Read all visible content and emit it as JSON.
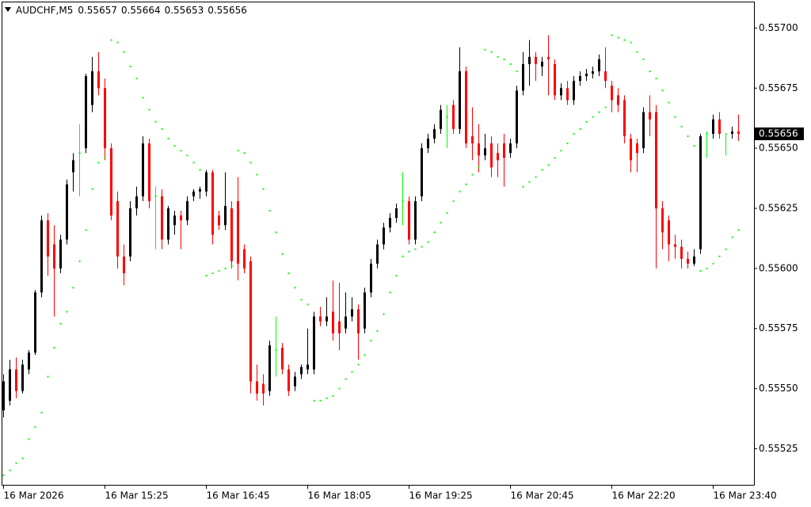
{
  "chart_data": {
    "type": "candlestick",
    "symbol": "AUDCHF,M5",
    "up_color": "#000000",
    "down_color": "#ff0000",
    "doji_color": "#00ff00",
    "sar_color": "#00ff00",
    "ylim": [
      0.5551,
      0.55711
    ],
    "yticks": [
      {
        "value": 0.55525,
        "label": "0.55525"
      },
      {
        "value": 0.5555,
        "label": "0.55550"
      },
      {
        "value": 0.55575,
        "label": "0.55575"
      },
      {
        "value": 0.556,
        "label": "0.55600"
      },
      {
        "value": 0.55625,
        "label": "0.55625"
      },
      {
        "value": 0.5565,
        "label": "0.55650"
      },
      {
        "value": 0.55675,
        "label": "0.55675"
      },
      {
        "value": 0.557,
        "label": "0.55700"
      }
    ],
    "categories": [
      "16 Mar 2026",
      null,
      null,
      null,
      null,
      null,
      null,
      null,
      null,
      null,
      null,
      null,
      null,
      null,
      null,
      null,
      "16 Mar 15:25",
      null,
      null,
      null,
      null,
      null,
      null,
      null,
      null,
      null,
      null,
      null,
      null,
      null,
      null,
      null,
      "16 Mar 16:45",
      null,
      null,
      null,
      null,
      null,
      null,
      null,
      null,
      null,
      null,
      null,
      null,
      null,
      null,
      null,
      "16 Mar 18:05",
      null,
      null,
      null,
      null,
      null,
      null,
      null,
      null,
      null,
      null,
      null,
      null,
      null,
      null,
      null,
      "16 Mar 19:25",
      null,
      null,
      null,
      null,
      null,
      null,
      null,
      null,
      null,
      null,
      null,
      null,
      null,
      null,
      null,
      "16 Mar 20:45",
      null,
      null,
      null,
      null,
      null,
      null,
      null,
      null,
      null,
      null,
      null,
      null,
      null,
      null,
      null,
      "16 Mar 22:20",
      null,
      null,
      null,
      null,
      null,
      null,
      null,
      null,
      null,
      null,
      null,
      null,
      null,
      null,
      null,
      "16 Mar 23:40",
      null,
      null,
      null,
      null
    ],
    "open": [
      0.55541,
      0.55545,
      0.55558,
      0.55549,
      0.55558,
      0.55565,
      0.5559,
      0.5562,
      0.5561,
      0.556,
      0.55612,
      0.5564,
      0.55648,
      0.5565,
      0.55668,
      0.55682,
      0.55675,
      0.5565,
      0.55628,
      0.55605,
      0.55605,
      0.55625,
      0.5563,
      0.55652,
      0.5563,
      0.5563,
      0.55612,
      0.55618,
      0.55622,
      0.5562,
      0.5563,
      0.55632,
      0.55632,
      0.5564,
      0.55622,
      0.55618,
      0.55625,
      0.55628,
      0.55608,
      0.55603,
      0.55553,
      0.55552,
      0.55549,
      0.55566,
      0.55567,
      0.55558,
      0.55551,
      0.55556,
      0.55558,
      0.55558,
      0.5558,
      0.55578,
      0.55582,
      0.55578,
      0.55575,
      0.5558,
      0.55583,
      0.55575,
      0.5559,
      0.55602,
      0.5561,
      0.55617,
      0.55621,
      0.55628,
      0.55628,
      0.55612,
      0.5563,
      0.5565,
      0.55654,
      0.55658,
      0.55663,
      0.55668,
      0.55658,
      0.55682,
      0.55655,
      0.55652,
      0.55647,
      0.55652,
      0.55648,
      0.55652,
      0.55648,
      0.55652,
      0.55674,
      0.55685,
      0.55688,
      0.55684,
      0.55688,
      0.55685,
      0.55672,
      0.55675,
      0.5567,
      0.55678,
      0.5568,
      0.55681,
      0.55682,
      0.55682,
      0.55676,
      0.55672,
      0.5567,
      0.55654,
      0.55652,
      0.5565,
      0.55665,
      0.55665,
      0.55625,
      0.5562,
      0.5561,
      0.55609,
      0.55604,
      0.55602,
      0.55608,
      0.55656,
      0.55656,
      0.55662,
      0.55656,
      0.55656,
      0.55657
    ],
    "high": [
      0.55556,
      0.55562,
      0.55563,
      0.55562,
      0.55566,
      0.55591,
      0.55622,
      0.55623,
      0.55618,
      0.55614,
      0.55637,
      0.55648,
      0.5566,
      0.55681,
      0.55688,
      0.5569,
      0.55679,
      0.55652,
      0.55632,
      0.5561,
      0.55628,
      0.55634,
      0.55655,
      0.55654,
      0.55634,
      0.55633,
      0.55626,
      0.55624,
      0.55624,
      0.5563,
      0.55633,
      0.55634,
      0.55641,
      0.55641,
      0.55624,
      0.5564,
      0.55628,
      0.55638,
      0.5561,
      0.55605,
      0.5556,
      0.55556,
      0.5557,
      0.5558,
      0.55569,
      0.5556,
      0.55557,
      0.5556,
      0.55575,
      0.55582,
      0.55584,
      0.55588,
      0.55595,
      0.55594,
      0.5559,
      0.55588,
      0.55585,
      0.55592,
      0.55604,
      0.55612,
      0.55619,
      0.55623,
      0.55627,
      0.5564,
      0.5563,
      0.5563,
      0.55652,
      0.55656,
      0.5566,
      0.55668,
      0.55668,
      0.5567,
      0.55692,
      0.55684,
      0.55667,
      0.5566,
      0.55656,
      0.55655,
      0.55652,
      0.55656,
      0.55654,
      0.55676,
      0.5569,
      0.55695,
      0.5569,
      0.55688,
      0.55697,
      0.55687,
      0.55677,
      0.55678,
      0.5568,
      0.55682,
      0.55683,
      0.55684,
      0.55689,
      0.55692,
      0.55678,
      0.55675,
      0.55672,
      0.55656,
      0.55654,
      0.55667,
      0.55672,
      0.55668,
      0.55628,
      0.55622,
      0.55614,
      0.55612,
      0.55607,
      0.55608,
      0.55656,
      0.55657,
      0.55664,
      0.55665,
      0.55656,
      0.55659,
      0.55664
    ],
    "low": [
      0.55538,
      0.55543,
      0.55546,
      0.55548,
      0.55556,
      0.55564,
      0.55588,
      0.55597,
      0.5558,
      0.55598,
      0.5561,
      0.55632,
      0.5563,
      0.55648,
      0.55665,
      0.55672,
      0.55645,
      0.5562,
      0.556,
      0.55593,
      0.55603,
      0.55622,
      0.55628,
      0.55625,
      0.55608,
      0.55608,
      0.5561,
      0.55614,
      0.55608,
      0.55618,
      0.55628,
      0.55629,
      0.5563,
      0.5561,
      0.55616,
      0.55616,
      0.556,
      0.55595,
      0.55598,
      0.55548,
      0.55545,
      0.55543,
      0.55547,
      0.55555,
      0.55556,
      0.55547,
      0.55549,
      0.55554,
      0.55556,
      0.55556,
      0.55576,
      0.55576,
      0.5557,
      0.55566,
      0.55573,
      0.55578,
      0.55562,
      0.55573,
      0.55588,
      0.556,
      0.55608,
      0.55615,
      0.55619,
      0.55618,
      0.5561,
      0.5561,
      0.55628,
      0.55648,
      0.55652,
      0.55656,
      0.5565,
      0.55656,
      0.55656,
      0.5565,
      0.55645,
      0.5564,
      0.55645,
      0.55638,
      0.55638,
      0.55634,
      0.55646,
      0.5565,
      0.55672,
      0.55676,
      0.55678,
      0.5568,
      0.55672,
      0.5567,
      0.5567,
      0.55668,
      0.55668,
      0.55676,
      0.55678,
      0.55679,
      0.5568,
      0.55675,
      0.55665,
      0.55665,
      0.55652,
      0.5564,
      0.5564,
      0.55648,
      0.55655,
      0.556,
      0.55608,
      0.55603,
      0.55604,
      0.556,
      0.556,
      0.55601,
      0.55606,
      0.55646,
      0.55654,
      0.55654,
      0.55647,
      0.55654,
      0.55653
    ],
    "close": [
      0.55553,
      0.55558,
      0.55549,
      0.5556,
      0.55565,
      0.5559,
      0.5562,
      0.55605,
      0.556,
      0.55612,
      0.55635,
      0.55645,
      0.55648,
      0.5568,
      0.55682,
      0.55675,
      0.5565,
      0.55622,
      0.55605,
      0.55598,
      0.55625,
      0.5563,
      0.55652,
      0.55628,
      0.5563,
      0.55612,
      0.55625,
      0.55622,
      0.5562,
      0.55628,
      0.55632,
      0.55633,
      0.5564,
      0.55614,
      0.55618,
      0.55626,
      0.55603,
      0.55602,
      0.556,
      0.55553,
      0.55548,
      0.55548,
      0.55568,
      0.55566,
      0.55558,
      0.55549,
      0.55555,
      0.55559,
      0.5556,
      0.5558,
      0.55578,
      0.5558,
      0.55573,
      0.55573,
      0.5558,
      0.55583,
      0.55573,
      0.5559,
      0.55602,
      0.5561,
      0.55617,
      0.55621,
      0.55625,
      0.55628,
      0.55612,
      0.55628,
      0.5565,
      0.55654,
      0.55658,
      0.55666,
      0.55663,
      0.55658,
      0.55682,
      0.55652,
      0.55652,
      0.55647,
      0.5565,
      0.55642,
      0.55645,
      0.55646,
      0.55652,
      0.55674,
      0.55685,
      0.55688,
      0.55685,
      0.55686,
      0.55687,
      0.55672,
      0.55675,
      0.5567,
      0.55678,
      0.5568,
      0.55681,
      0.55682,
      0.55687,
      0.55678,
      0.5567,
      0.55668,
      0.55655,
      0.55645,
      0.55648,
      0.55665,
      0.55662,
      0.55625,
      0.55615,
      0.5561,
      0.55609,
      0.55604,
      0.55602,
      0.55605,
      0.55655,
      0.55656,
      0.55662,
      0.55656,
      0.55656,
      0.55657,
      0.55656
    ],
    "sar": [
      0.55514,
      0.55516,
      0.55519,
      0.55521,
      0.55529,
      0.55534,
      0.5554,
      0.55555,
      0.55567,
      0.55577,
      0.55582,
      0.55592,
      0.55603,
      0.55616,
      0.55633,
      0.55644,
      0.55646,
      0.55695,
      0.55694,
      0.5569,
      0.55684,
      0.55679,
      0.55671,
      0.55666,
      0.55661,
      0.55658,
      0.55654,
      0.55651,
      0.55649,
      0.55647,
      0.55644,
      0.55641,
      0.55597,
      0.55598,
      0.55599,
      0.556,
      0.55601,
      0.55649,
      0.55648,
      0.55644,
      0.55639,
      0.55633,
      0.55624,
      0.55615,
      0.55606,
      0.55598,
      0.55592,
      0.55587,
      0.55585,
      0.55545,
      0.55545,
      0.55546,
      0.55547,
      0.5555,
      0.55554,
      0.55557,
      0.5556,
      0.55564,
      0.5557,
      0.55574,
      0.55581,
      0.5559,
      0.55597,
      0.55605,
      0.55607,
      0.55608,
      0.55609,
      0.55611,
      0.55615,
      0.55619,
      0.55623,
      0.55628,
      0.55632,
      0.55635,
      0.55639,
      0.55642,
      0.55691,
      0.5569,
      0.55688,
      0.55687,
      0.55685,
      0.55682,
      0.55634,
      0.55636,
      0.55638,
      0.55641,
      0.55643,
      0.55646,
      0.55649,
      0.55652,
      0.55656,
      0.55658,
      0.55661,
      0.55663,
      0.55665,
      0.55667,
      0.55697,
      0.55696,
      0.55695,
      0.55694,
      0.5569,
      0.55687,
      0.55682,
      0.55679,
      0.55674,
      0.55669,
      0.55663,
      0.55659,
      0.55655,
      0.55651,
      0.55599,
      0.556,
      0.55602,
      0.55605,
      0.55608,
      0.55613,
      0.55616
    ]
  }
}
